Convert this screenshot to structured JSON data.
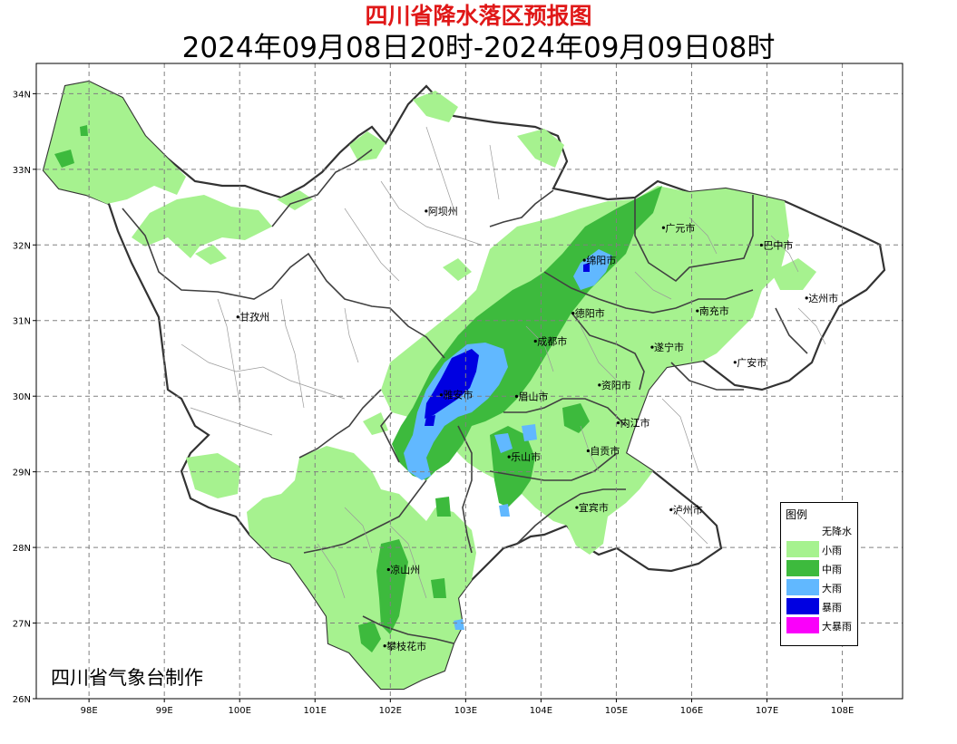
{
  "title": "四川省降水落区预报图",
  "subtitle": "2024年09月08日20时-2024年09月09日08时",
  "credit": "四川省气象台制作",
  "axes": {
    "lon_ticks": [
      "98E",
      "99E",
      "100E",
      "101E",
      "102E",
      "103E",
      "104E",
      "105E",
      "106E",
      "107E",
      "108E"
    ],
    "lat_ticks": [
      "34N",
      "33N",
      "32N",
      "31N",
      "30N",
      "29N",
      "28N",
      "27N",
      "26N"
    ],
    "grid": true,
    "lon_range": [
      97.3,
      108.8
    ],
    "lat_range": [
      26,
      34.4
    ]
  },
  "legend": {
    "title": "图例",
    "position": "bottom-right",
    "items": [
      {
        "label": "无降水",
        "color": "#ffffff"
      },
      {
        "label": "小雨",
        "color": "#a6f28f"
      },
      {
        "label": "中雨",
        "color": "#3dba3d"
      },
      {
        "label": "大雨",
        "color": "#61b8ff"
      },
      {
        "label": "暴雨",
        "color": "#0000e1"
      },
      {
        "label": "大暴雨",
        "color": "#fa00fa"
      }
    ]
  },
  "cities": [
    {
      "name": "阿坝州",
      "lon": 102.5,
      "lat": 32.4
    },
    {
      "name": "甘孜州",
      "lon": 100.0,
      "lat": 31.0
    },
    {
      "name": "绵阳市",
      "lon": 104.6,
      "lat": 31.75
    },
    {
      "name": "广元市",
      "lon": 105.65,
      "lat": 32.18
    },
    {
      "name": "巴中市",
      "lon": 106.95,
      "lat": 31.95
    },
    {
      "name": "德阳市",
      "lon": 104.45,
      "lat": 31.05
    },
    {
      "name": "南充市",
      "lon": 106.1,
      "lat": 31.08
    },
    {
      "name": "达州市",
      "lon": 107.55,
      "lat": 31.25
    },
    {
      "name": "成都市",
      "lon": 103.95,
      "lat": 30.68
    },
    {
      "name": "遂宁市",
      "lon": 105.5,
      "lat": 30.6
    },
    {
      "name": "广安市",
      "lon": 106.6,
      "lat": 30.4
    },
    {
      "name": "资阳市",
      "lon": 104.8,
      "lat": 30.1
    },
    {
      "name": "雅安市",
      "lon": 102.7,
      "lat": 29.97
    },
    {
      "name": "眉山市",
      "lon": 103.7,
      "lat": 29.95
    },
    {
      "name": "内江市",
      "lon": 105.05,
      "lat": 29.6
    },
    {
      "name": "自贡市",
      "lon": 104.65,
      "lat": 29.23
    },
    {
      "name": "乐山市",
      "lon": 103.6,
      "lat": 29.15
    },
    {
      "name": "宜宾市",
      "lon": 104.5,
      "lat": 28.48
    },
    {
      "name": "泸州市",
      "lon": 105.75,
      "lat": 28.45
    },
    {
      "name": "凉山州",
      "lon": 102.0,
      "lat": 27.66
    },
    {
      "name": "攀枝花市",
      "lon": 101.95,
      "lat": 26.65
    }
  ],
  "colors": {
    "light_rain": "#a6f28f",
    "moderate_rain": "#3dba3d",
    "heavy_rain": "#61b8ff",
    "rainstorm": "#0000e1",
    "heavy_rainstorm": "#fa00fa",
    "boundary": "#404040",
    "grid": "#808080"
  }
}
